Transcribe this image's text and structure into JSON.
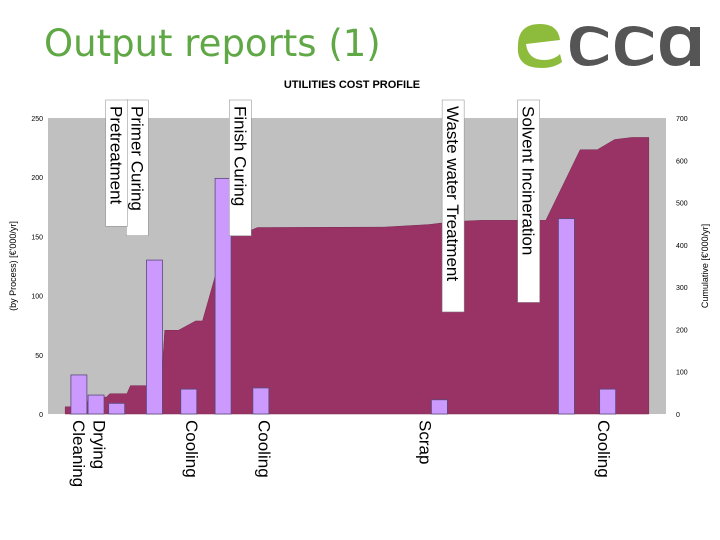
{
  "slide": {
    "title": "Output reports (1)",
    "logo_text": "ecca",
    "logo_color": "#8dbb3c"
  },
  "chart_data": {
    "type": "bar",
    "title": "UTILITIES COST PROFILE",
    "ylabel": "(by Process) [€'000/yr]",
    "y2label": "Cumulative [€'000/yr]",
    "ylim": [
      0,
      250
    ],
    "y2lim": [
      0,
      700
    ],
    "yticks": [
      0,
      50,
      100,
      150,
      200,
      250
    ],
    "y2ticks": [
      0,
      100,
      200,
      300,
      400,
      500,
      600,
      700
    ],
    "grid": false,
    "colors": {
      "plot_bg": "#c0c0c0",
      "area": "#993366",
      "bar": "#cc99ff",
      "bar_edge": "#5a4a7a"
    },
    "process_bars": [
      {
        "x": 0.09,
        "value": 33
      },
      {
        "x": 0.14,
        "value": 16
      },
      {
        "x": 0.2,
        "value": 9
      },
      {
        "x": 0.31,
        "value": 130
      },
      {
        "x": 0.41,
        "value": 21
      },
      {
        "x": 0.51,
        "value": 199
      },
      {
        "x": 0.62,
        "value": 22
      },
      {
        "x": 1.14,
        "value": 12
      },
      {
        "x": 1.51,
        "value": 165
      },
      {
        "x": 1.63,
        "value": 21
      }
    ],
    "cumulative": {
      "x": [
        0.05,
        0.11,
        0.12,
        0.17,
        0.18,
        0.23,
        0.24,
        0.33,
        0.34,
        0.38,
        0.43,
        0.45,
        0.52,
        0.55,
        0.61,
        0.64,
        0.98,
        1.11,
        1.18,
        1.26,
        1.34,
        1.42,
        1.45,
        1.55,
        1.6,
        1.65,
        1.7,
        1.75
      ],
      "y": [
        17,
        17,
        40,
        40,
        48,
        48,
        67,
        67,
        198,
        198,
        220,
        220,
        420,
        420,
        441,
        441,
        442,
        448,
        455,
        458,
        458,
        458,
        458,
        625,
        625,
        649,
        654,
        654
      ]
    },
    "xlim": [
      0,
      1.8
    ],
    "annotations_top": [
      {
        "text": "Primer Curing",
        "x": 0.26
      },
      {
        "text": "Pretreatment",
        "x": 0.2
      },
      {
        "text": "Finish Curing",
        "x": 0.56
      },
      {
        "text": "Waste water Treatment",
        "x": 1.18
      },
      {
        "text": "Solvent Incineration",
        "x": 1.4
      }
    ],
    "annotations_bottom": [
      {
        "text": "Cleaning",
        "x": 0.09
      },
      {
        "text": "Drying",
        "x": 0.15
      },
      {
        "text": "Cooling",
        "x": 0.42
      },
      {
        "text": "Cooling",
        "x": 0.63
      },
      {
        "text": "Scrap",
        "x": 1.1
      },
      {
        "text": "Cooling",
        "x": 1.62
      }
    ]
  }
}
